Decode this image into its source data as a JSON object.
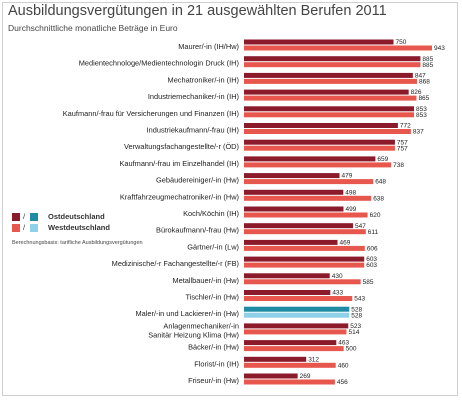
{
  "title": "Ausbildungsvergütungen in 21 ausgewählten Berufen 2011",
  "subtitle": "Durchschnittliche monatliche Beträge in Euro",
  "legend": {
    "ost": "Ostdeutschland",
    "west": "Westdeutschland",
    "separator": "/"
  },
  "note": "Berechnungsbasis: tarifliche Ausbildungsvergütungen",
  "colors": {
    "ost_default": "#8b1a2b",
    "west_default": "#e8574e",
    "ost_highlight": "#1f8ca3",
    "west_highlight": "#8fd1e8"
  },
  "chart_data": {
    "type": "bar",
    "orientation": "horizontal",
    "title": "Ausbildungsvergütungen in 21 ausgewählten Berufen 2011",
    "subtitle": "Durchschnittliche monatliche Beträge in Euro",
    "highlight_category_index": 16,
    "categories": [
      [
        "Maurer/-in (IH/Hw)"
      ],
      [
        "Medientechnologe/Medientechnologin Druck (IH)"
      ],
      [
        "Mechatroniker/-in (IH)"
      ],
      [
        "Industriemechaniker/-in (IH)"
      ],
      [
        "Kaufmann/-frau für Versicherungen und Finanzen (IH)"
      ],
      [
        "Industriekaufmann/-frau (IH)"
      ],
      [
        "Verwaltungsfachangestellte/-r (ÖD)"
      ],
      [
        "Kaufmann/-frau im Einzelhandel (IH)"
      ],
      [
        "Gebäudereiniger/-in (Hw)"
      ],
      [
        "Kraftfahrzeugmechatroniker/-in (Hw)"
      ],
      [
        "Koch/Köchin (IH)"
      ],
      [
        "Bürokaufmann/-frau (Hw)"
      ],
      [
        "Gärtner/-in (Lw)"
      ],
      [
        "Medizinische/-r Fachangestellte/-r (FB)"
      ],
      [
        "Metallbauer/-in (Hw)"
      ],
      [
        "Tischler/-in (Hw)"
      ],
      [
        "Maler/-in und Lackierer/-in (Hw)"
      ],
      [
        "Anlagenmechaniker/-in",
        "Sanitär Heizung Klima (Hw)"
      ],
      [
        "Bäcker/-in (Hw)"
      ],
      [
        "Florist/-in (IH)"
      ],
      [
        "Friseur/-in (Hw)"
      ]
    ],
    "series": [
      {
        "name": "Ostdeutschland",
        "values": [
          750,
          885,
          847,
          826,
          853,
          772,
          757,
          659,
          479,
          498,
          499,
          547,
          469,
          603,
          430,
          433,
          528,
          523,
          463,
          312,
          269
        ]
      },
      {
        "name": "Westdeutschland",
        "values": [
          943,
          885,
          868,
          865,
          853,
          837,
          757,
          738,
          648,
          638,
          620,
          611,
          606,
          603,
          585,
          543,
          528,
          514,
          500,
          460,
          456
        ]
      }
    ],
    "xlim": [
      0,
      943
    ],
    "grid": false,
    "legend_position": "left-middle"
  }
}
